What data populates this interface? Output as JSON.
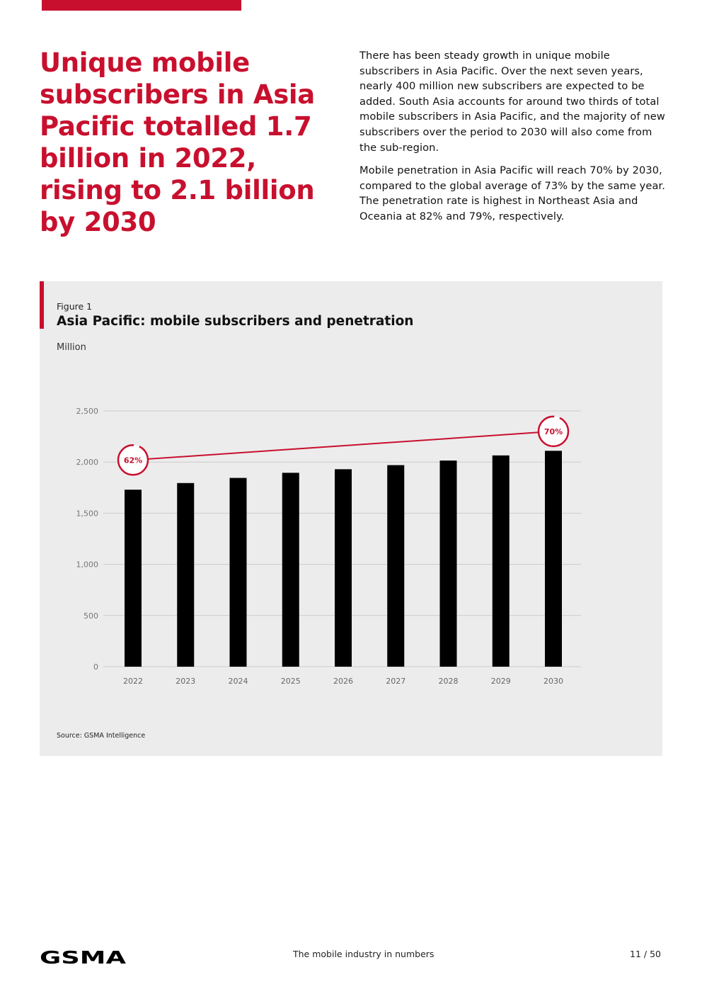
{
  "colors": {
    "brand_red": "#c8102e",
    "bar": "#000000",
    "panel": "#ececec",
    "grid": "#cccccc"
  },
  "headline": "Unique mobile subscribers in Asia Pacific totalled 1.7 billion in 2022, rising to 2.1 billion by 2030",
  "intro": {
    "paragraph1": "There has been steady growth in unique mobile subscribers in Asia Pacific. Over the next seven years, nearly 400 million new subscribers are expected to be added. South Asia accounts for around two thirds of total mobile subscribers in Asia Pacific, and the majority of new subscribers over the period to 2030 will also come from the sub-region.",
    "paragraph2": "Mobile penetration in Asia Pacific will reach 70% by 2030, compared to the global average of 73% by the same year. The penetration rate is highest in Northeast Asia and Oceania at 82% and 79%, respectively."
  },
  "figure": {
    "label": "Figure 1",
    "title": "Asia Pacific: mobile subscribers and penetration",
    "unit": "Million",
    "source": "Source: GSMA Intelligence"
  },
  "chart_data": {
    "type": "bar",
    "title": "Asia Pacific: mobile subscribers and penetration",
    "ylabel": "Million",
    "ylim": [
      0,
      2500
    ],
    "yticks": [
      0,
      500,
      1000,
      1500,
      2000,
      2500
    ],
    "ytick_labels": [
      "0",
      "500",
      "1,000",
      "1,500",
      "2,000",
      "2,500"
    ],
    "grid": true,
    "categories": [
      "2022",
      "2023",
      "2024",
      "2025",
      "2026",
      "2027",
      "2028",
      "2029",
      "2030"
    ],
    "series": [
      {
        "values": [
          1730,
          1795,
          1845,
          1895,
          1930,
          1970,
          2015,
          2065,
          2110
        ]
      }
    ],
    "penetration_line": {
      "start": {
        "category": "2022",
        "label": "62%"
      },
      "end": {
        "category": "2030",
        "label": "70%"
      },
      "y_values": [
        2020,
        2300
      ]
    }
  },
  "footer": {
    "logo": "GSMA",
    "center": "The mobile industry in numbers",
    "page": "11 / 50"
  }
}
